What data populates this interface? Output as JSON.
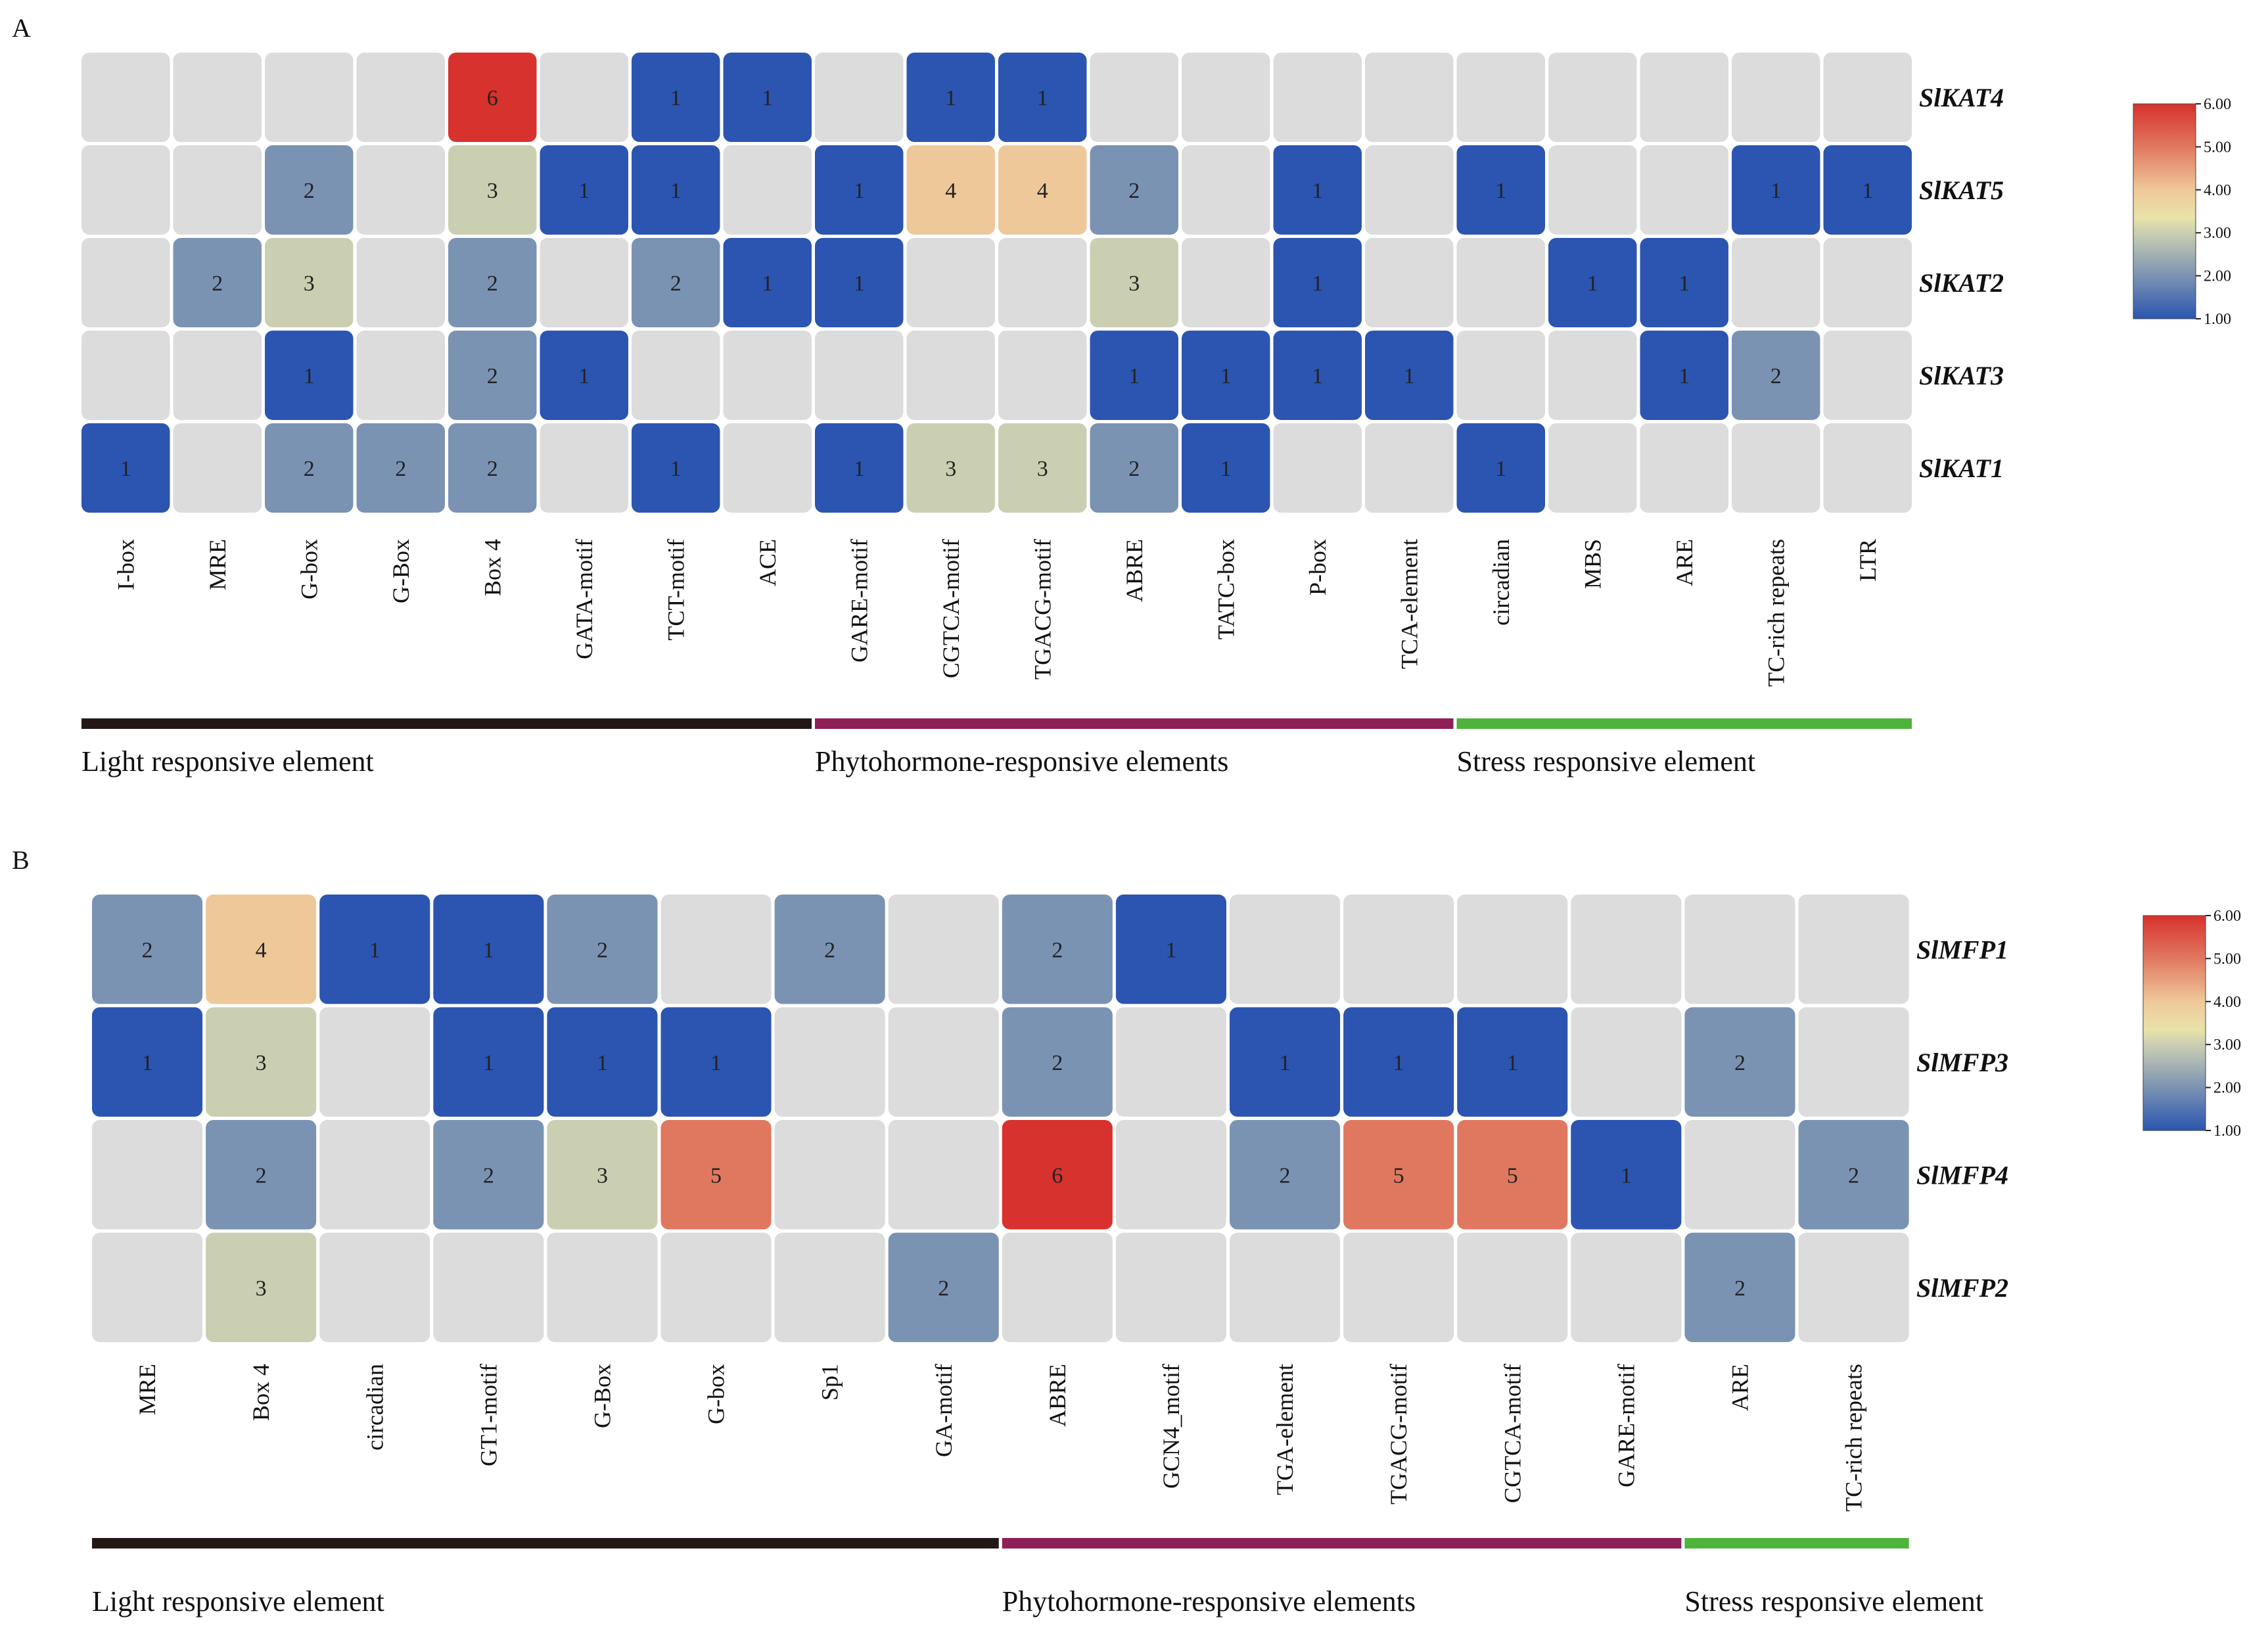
{
  "chart_data": [
    {
      "type": "heatmap",
      "panel": "A",
      "rows": [
        "SlKAT4",
        "SlKAT5",
        "SlKAT2",
        "SlKAT3",
        "SlKAT1"
      ],
      "columns": [
        "I-box",
        "MRE",
        "G-box",
        "G-Box",
        "Box 4",
        "GATA-motif",
        "TCT-motif",
        "ACE",
        "GARE-motif",
        "CGTCA-motif",
        "TGACG-motif",
        "ABRE",
        "TATC-box",
        "P-box",
        "TCA-element",
        "circadian",
        "MBS",
        "ARE",
        "TC-rich repeats",
        "LTR"
      ],
      "values": [
        [
          null,
          null,
          null,
          null,
          6,
          null,
          1,
          1,
          null,
          1,
          1,
          null,
          null,
          null,
          null,
          null,
          null,
          null,
          null,
          null
        ],
        [
          null,
          null,
          2,
          null,
          3,
          1,
          1,
          null,
          1,
          4,
          4,
          2,
          null,
          1,
          null,
          1,
          null,
          null,
          1,
          1
        ],
        [
          null,
          2,
          3,
          null,
          2,
          null,
          2,
          1,
          1,
          null,
          null,
          3,
          null,
          1,
          null,
          null,
          1,
          1,
          null,
          null
        ],
        [
          null,
          null,
          1,
          null,
          2,
          1,
          null,
          null,
          null,
          null,
          null,
          1,
          1,
          1,
          1,
          null,
          null,
          1,
          2,
          null
        ],
        [
          1,
          null,
          2,
          2,
          2,
          null,
          1,
          null,
          1,
          3,
          3,
          2,
          1,
          null,
          null,
          1,
          null,
          null,
          null,
          null
        ]
      ],
      "groups": [
        {
          "label": "Light responsive element",
          "start": 0,
          "end": 7,
          "color": "#231815"
        },
        {
          "label": "Phytohormone-responsive elements",
          "start": 8,
          "end": 14,
          "color": "#8e1f57"
        },
        {
          "label": "Stress responsive element",
          "start": 15,
          "end": 19,
          "color": "#4eb33a"
        }
      ],
      "colorbar": {
        "min": 1,
        "max": 6,
        "ticks": [
          "1.00",
          "2.00",
          "3.00",
          "4.00",
          "5.00",
          "6.00"
        ]
      }
    },
    {
      "type": "heatmap",
      "panel": "B",
      "rows": [
        "SlMFP1",
        "SlMFP3",
        "SlMFP4",
        "SlMFP2"
      ],
      "columns": [
        "MRE",
        "Box 4",
        "circadian",
        "GT1-motif",
        "G-Box",
        "G-box",
        "Sp1",
        "GA-motif",
        "ABRE",
        "GCN4_motif",
        "TGA-element",
        "TGACG-motif",
        "CGTCA-motif",
        "GARE-motif",
        "ARE",
        "TC-rich repeats"
      ],
      "values": [
        [
          2,
          4,
          1,
          1,
          2,
          null,
          2,
          null,
          2,
          1,
          null,
          null,
          null,
          null,
          null,
          null
        ],
        [
          1,
          3,
          null,
          1,
          1,
          1,
          null,
          null,
          2,
          null,
          1,
          1,
          1,
          null,
          2,
          null
        ],
        [
          null,
          2,
          null,
          2,
          3,
          5,
          null,
          null,
          6,
          null,
          2,
          5,
          5,
          1,
          null,
          2
        ],
        [
          null,
          3,
          null,
          null,
          null,
          null,
          null,
          2,
          null,
          null,
          null,
          null,
          null,
          null,
          2,
          null
        ]
      ],
      "groups": [
        {
          "label": "Light responsive element",
          "start": 0,
          "end": 7,
          "color": "#231815"
        },
        {
          "label": "Phytohormone-responsive elements",
          "start": 8,
          "end": 13,
          "color": "#8e1f57"
        },
        {
          "label": "Stress responsive element",
          "start": 14,
          "end": 15,
          "color": "#4eb33a"
        }
      ],
      "colorbar": {
        "min": 1,
        "max": 6,
        "ticks": [
          "1.00",
          "2.00",
          "3.00",
          "4.00",
          "5.00",
          "6.00"
        ]
      }
    }
  ],
  "colors": {
    "empty_cell": "#dcdcdc",
    "scale": [
      "#2b55b0",
      "#7b93b3",
      "#cbcfb2",
      "#efc899",
      "#e07860",
      "#d7322d"
    ]
  }
}
